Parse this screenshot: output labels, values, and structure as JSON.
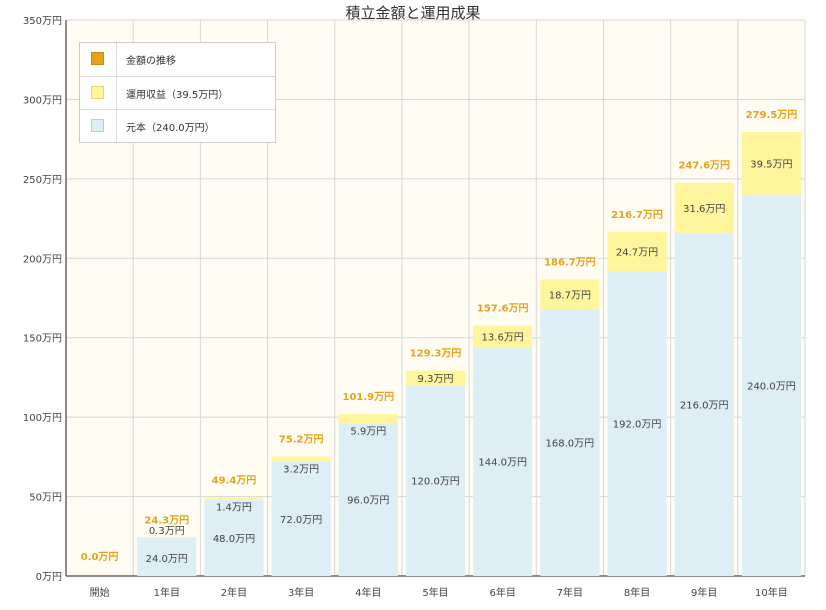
{
  "chart_data": {
    "type": "bar",
    "stacked": true,
    "title": "積立金額と運用成果",
    "categories": [
      "開始",
      "1年目",
      "2年目",
      "3年目",
      "4年目",
      "5年目",
      "6年目",
      "7年目",
      "8年目",
      "9年目",
      "10年目"
    ],
    "series": [
      {
        "name": "元本（240.0万円）",
        "color": "#ddeef5",
        "values": [
          0,
          24.0,
          48.0,
          72.0,
          96.0,
          120.0,
          144.0,
          168.0,
          192.0,
          216.0,
          240.0
        ],
        "labels": [
          "",
          "24.0万円",
          "48.0万円",
          "72.0万円",
          "96.0万円",
          "120.0万円",
          "144.0万円",
          "168.0万円",
          "192.0万円",
          "216.0万円",
          "240.0万円"
        ]
      },
      {
        "name": "運用収益（39.5万円）",
        "color": "#fff59c",
        "values": [
          0,
          0.3,
          1.4,
          3.2,
          5.9,
          9.3,
          13.6,
          18.7,
          24.7,
          31.6,
          39.5
        ],
        "labels": [
          "",
          "0.3万円",
          "1.4万円",
          "3.2万円",
          "5.9万円",
          "9.3万円",
          "13.6万円",
          "18.7万円",
          "24.7万円",
          "31.6万円",
          "39.5万円"
        ]
      }
    ],
    "totals": [
      0.0,
      24.3,
      49.4,
      75.2,
      101.9,
      129.3,
      157.6,
      186.7,
      216.7,
      247.6,
      279.5
    ],
    "total_labels": [
      "0.0万円",
      "24.3万円",
      "49.4万円",
      "75.2万円",
      "101.9万円",
      "129.3万円",
      "157.6万円",
      "186.7万円",
      "216.7万円",
      "247.6万円",
      "279.5万円"
    ],
    "total_series_name": "金額の推移",
    "total_color": "#e8a21a",
    "ylim": [
      0,
      350
    ],
    "yticks": [
      0,
      50,
      100,
      150,
      200,
      250,
      300,
      350
    ],
    "ytick_labels": [
      "0万円",
      "50万円",
      "100万円",
      "150万円",
      "200万円",
      "250万円",
      "300万円",
      "350万円"
    ],
    "grid": true,
    "legend_position": "top-left",
    "plot_background": "#fffdf3"
  }
}
